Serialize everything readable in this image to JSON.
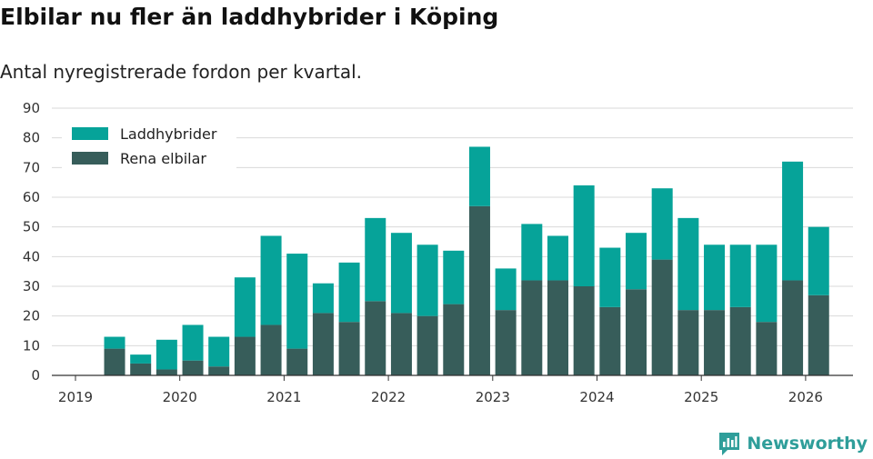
{
  "header": {
    "title": "Elbilar nu fler än laddhybrider i Köping",
    "subtitle": "Antal nyregistrerade fordon per kvartal."
  },
  "brand": {
    "name": "Newsworthy",
    "icon": "newsworthy-logo-icon",
    "color": "#2f9e9a"
  },
  "chart_data": {
    "type": "bar",
    "stacked": true,
    "title": "Elbilar nu fler än laddhybrider i Köping",
    "subtitle": "Antal nyregistrerade fordon per kvartal.",
    "xlabel": "",
    "ylabel": "",
    "ylim": [
      0,
      90
    ],
    "yticks": [
      0,
      10,
      20,
      30,
      40,
      50,
      60,
      70,
      80,
      90
    ],
    "xticks": [
      "2019",
      "2020",
      "2021",
      "2022",
      "2023",
      "2024",
      "2025",
      "2026"
    ],
    "categories": [
      "2019Q2",
      "2019Q3",
      "2019Q4",
      "2020Q1",
      "2020Q2",
      "2020Q3",
      "2020Q4",
      "2021Q1",
      "2021Q2",
      "2021Q3",
      "2021Q4",
      "2022Q1",
      "2022Q2",
      "2022Q3",
      "2022Q4",
      "2023Q1",
      "2023Q2",
      "2023Q3",
      "2023Q4",
      "2024Q1",
      "2024Q2",
      "2024Q3",
      "2024Q4",
      "2025Q1",
      "2025Q2",
      "2025Q3",
      "2025Q4",
      "2026Q1"
    ],
    "grid": true,
    "legend_position": "top-left",
    "series": [
      {
        "name": "Rena elbilar",
        "color": "#375d5a",
        "values": [
          9,
          4,
          2,
          5,
          3,
          13,
          17,
          9,
          21,
          18,
          25,
          21,
          20,
          24,
          57,
          22,
          32,
          32,
          30,
          23,
          29,
          39,
          22,
          22,
          23,
          18,
          32,
          27
        ]
      },
      {
        "name": "Laddhybrider",
        "color": "#06a399",
        "values": [
          4,
          3,
          10,
          12,
          10,
          20,
          30,
          32,
          10,
          20,
          28,
          27,
          24,
          18,
          20,
          14,
          19,
          15,
          34,
          20,
          19,
          24,
          31,
          22,
          21,
          26,
          40,
          23
        ]
      }
    ]
  }
}
